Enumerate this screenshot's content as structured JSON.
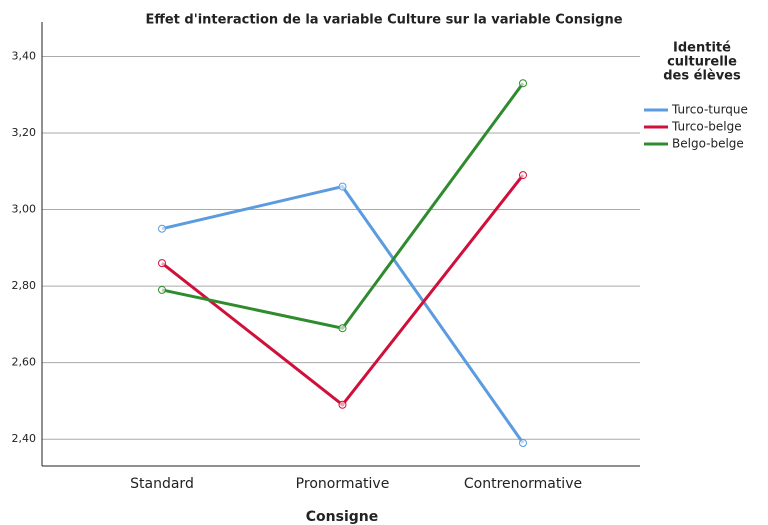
{
  "chart_data": {
    "type": "line",
    "title": "Effet d'interaction de la variable Culture sur la variable Consigne",
    "x_label": "Consigne",
    "legend_title": [
      "Identité",
      "culturelle",
      "des élèves"
    ],
    "categories": [
      "Standard",
      "Pronormative",
      "Contrenormative"
    ],
    "series": [
      {
        "name": "Turco-turque",
        "color": "#5b9bdf",
        "values": [
          2.95,
          3.06,
          2.39
        ]
      },
      {
        "name": "Turco-belge",
        "color": "#d0103a",
        "values": [
          2.86,
          2.49,
          3.09
        ]
      },
      {
        "name": "Belgo-belge",
        "color": "#2e8b2e",
        "values": [
          2.79,
          2.69,
          3.33
        ]
      }
    ],
    "ylim": [
      2.33,
      3.49
    ],
    "yticks": [
      {
        "value": 2.4,
        "label": "2,40"
      },
      {
        "value": 2.6,
        "label": "2,60"
      },
      {
        "value": 2.8,
        "label": "2,80"
      },
      {
        "value": 3.0,
        "label": "3,00"
      },
      {
        "value": 3.2,
        "label": "3,20"
      },
      {
        "value": 3.4,
        "label": "3,40"
      }
    ],
    "grid": true,
    "legend": "right"
  }
}
